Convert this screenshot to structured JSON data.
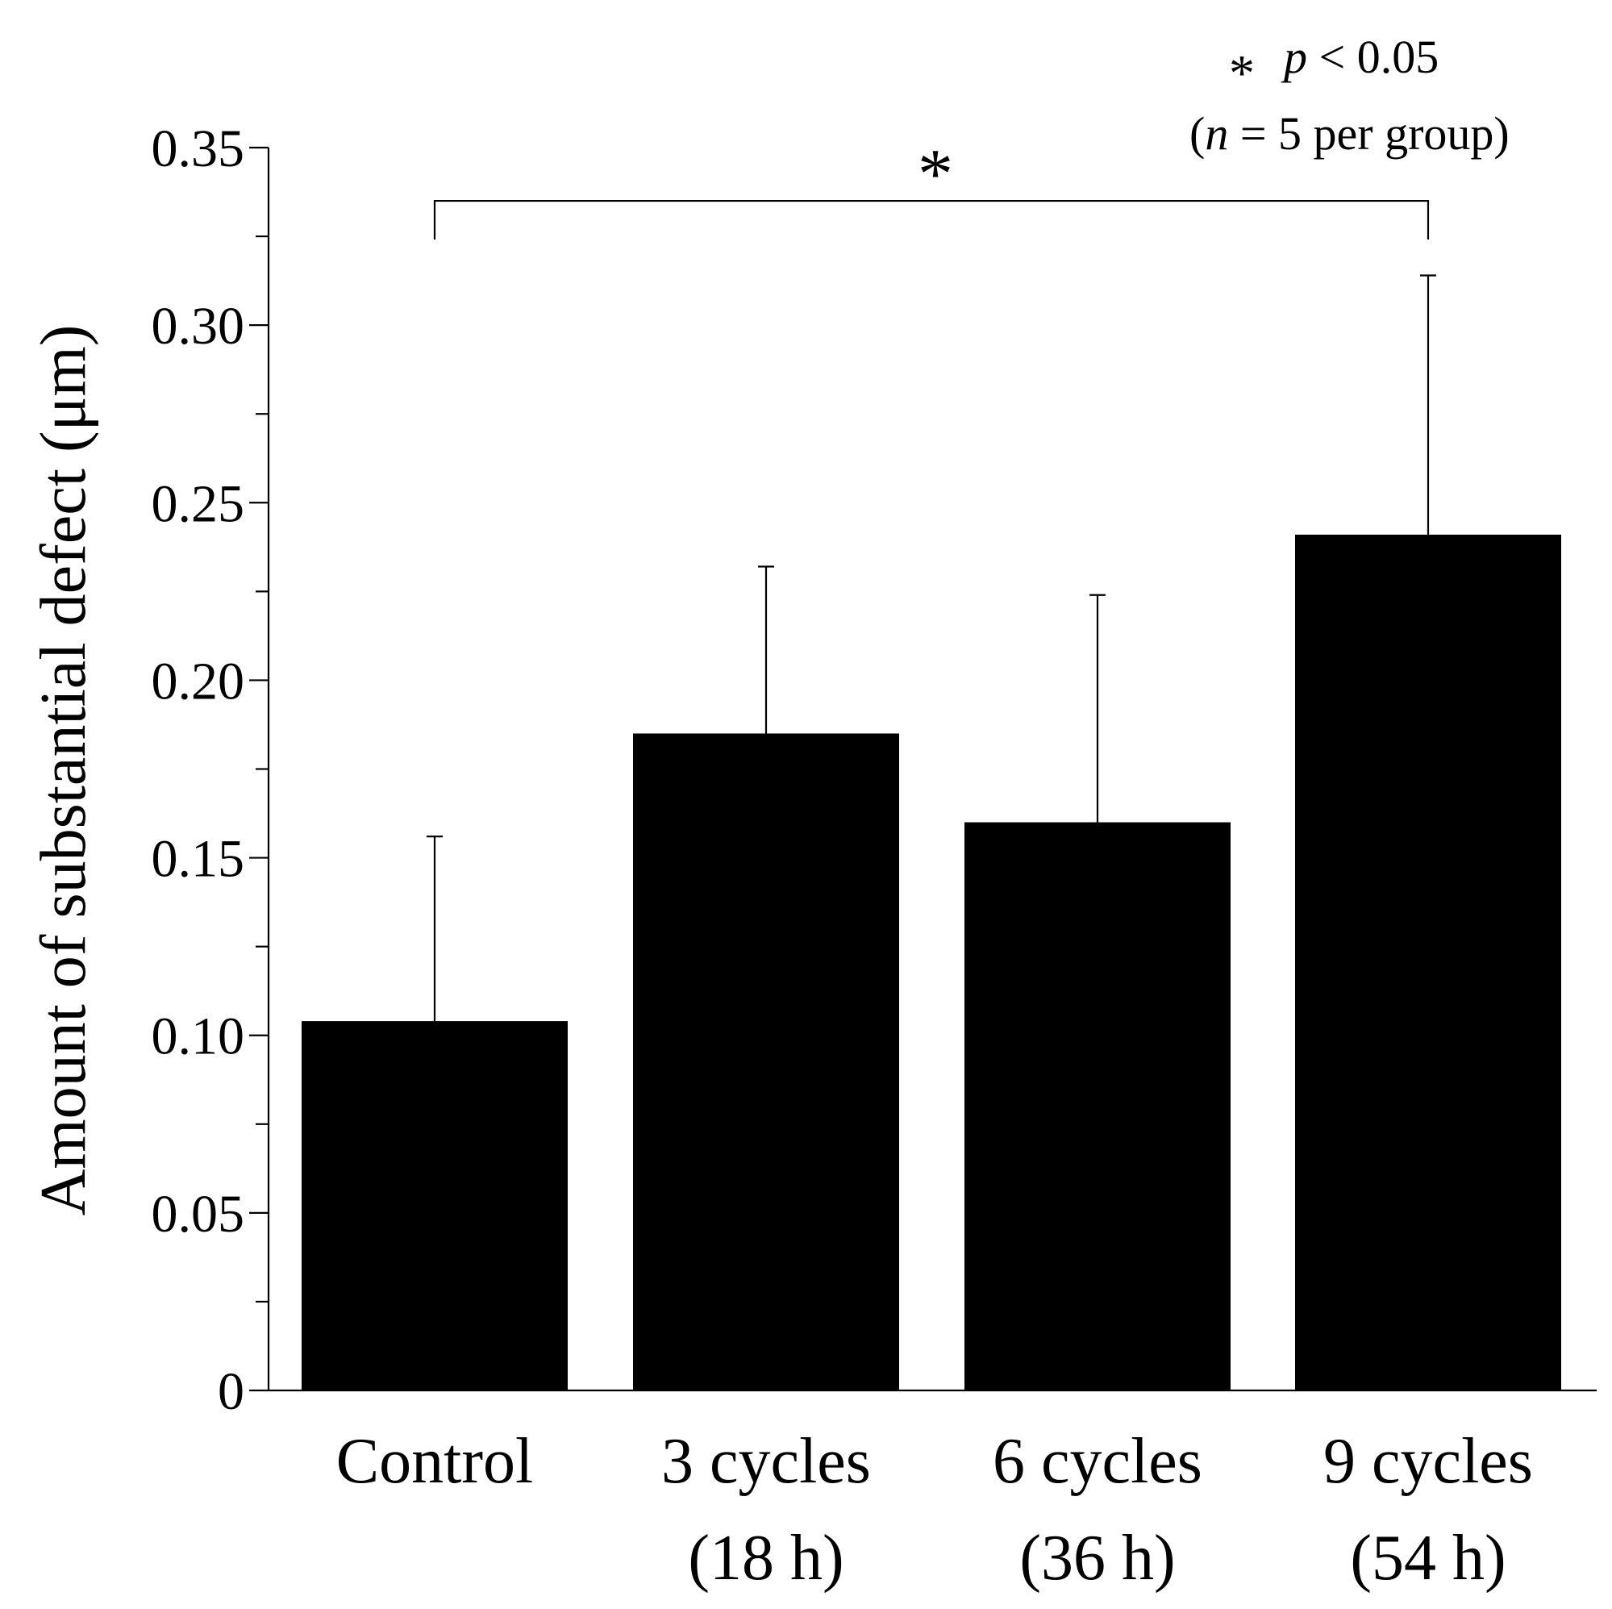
{
  "chart_data": {
    "type": "bar",
    "title": "",
    "xlabel": "",
    "ylabel": "Amount of substantial defect (μm)",
    "ylim": [
      0,
      0.35
    ],
    "grid": false,
    "y_ticks": [
      {
        "value": 0,
        "label": "0"
      },
      {
        "value": 0.05,
        "label": "0.05"
      },
      {
        "value": 0.1,
        "label": "0.10"
      },
      {
        "value": 0.15,
        "label": "0.15"
      },
      {
        "value": 0.2,
        "label": "0.20"
      },
      {
        "value": 0.25,
        "label": "0.25"
      },
      {
        "value": 0.3,
        "label": "0.30"
      },
      {
        "value": 0.35,
        "label": "0.35"
      }
    ],
    "y_minor_step": 0.025,
    "categories": [
      {
        "line1": "Control",
        "line2": ""
      },
      {
        "line1": "3 cycles",
        "line2": "(18 h)"
      },
      {
        "line1": "6 cycles",
        "line2": "(36 h)"
      },
      {
        "line1": "9 cycles",
        "line2": "(54 h)"
      }
    ],
    "values": [
      0.104,
      0.185,
      0.16,
      0.241
    ],
    "errors": [
      0.052,
      0.047,
      0.064,
      0.073
    ],
    "bar_color": "#000000",
    "significance": {
      "from_category": 0,
      "to_category": 3,
      "level": 0.335,
      "marker": "*"
    },
    "legend": {
      "position": "top-right",
      "star": "*",
      "p_symbol": "p",
      "p_text": " < 0.05",
      "n_open": "(",
      "n_symbol": "n",
      "n_text": " = 5 per group)"
    }
  }
}
